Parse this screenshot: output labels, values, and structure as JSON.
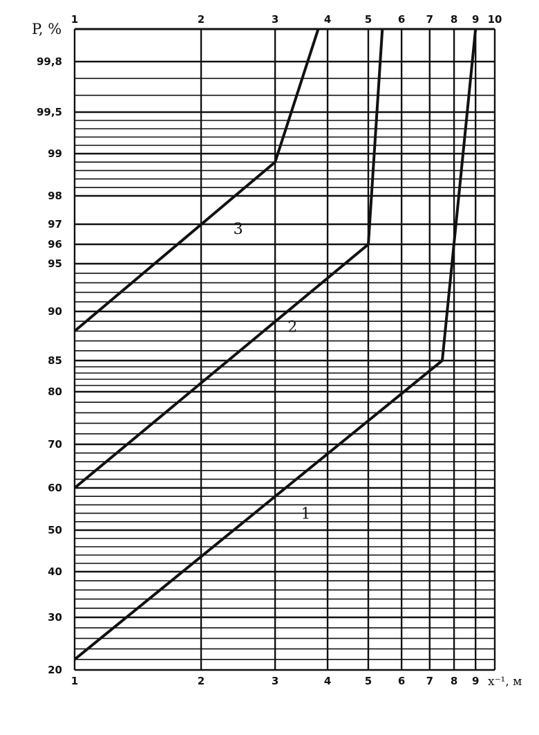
{
  "chart_data": {
    "type": "line",
    "title": "",
    "ylabel": "P, %",
    "xlabel": "x⁻¹, м",
    "x_scale": "log",
    "y_scale": "probability",
    "xlim": [
      1,
      10
    ],
    "ylim": [
      20,
      99.9
    ],
    "x_ticks": [
      1,
      2,
      3,
      4,
      5,
      6,
      7,
      8,
      9,
      10
    ],
    "x_tick_labels_top": [
      "1",
      "2",
      "3",
      "4",
      "5",
      "6",
      "7",
      "8",
      "9",
      "10"
    ],
    "x_tick_labels_bottom": [
      "1",
      "2",
      "3",
      "4",
      "5",
      "6",
      "7",
      "8",
      "9"
    ],
    "y_ticks": [
      20,
      30,
      40,
      50,
      60,
      70,
      80,
      85,
      90,
      95,
      96,
      97,
      98,
      99,
      99.5,
      99.8
    ],
    "y_tick_labels": [
      "20",
      "30",
      "40",
      "50",
      "60",
      "70",
      "80",
      "85",
      "90",
      "95",
      "96",
      "97",
      "98",
      "99",
      "99,5",
      "99,8"
    ],
    "grid": true,
    "series": [
      {
        "name": "1",
        "points": [
          [
            1,
            22
          ],
          [
            7.5,
            85
          ],
          [
            9,
            99.9
          ]
        ]
      },
      {
        "name": "2",
        "points": [
          [
            1,
            60
          ],
          [
            5,
            96
          ],
          [
            5.4,
            99.9
          ]
        ]
      },
      {
        "name": "3",
        "points": [
          [
            1,
            88
          ],
          [
            3,
            98.8
          ],
          [
            3.8,
            99.9
          ]
        ]
      }
    ]
  }
}
